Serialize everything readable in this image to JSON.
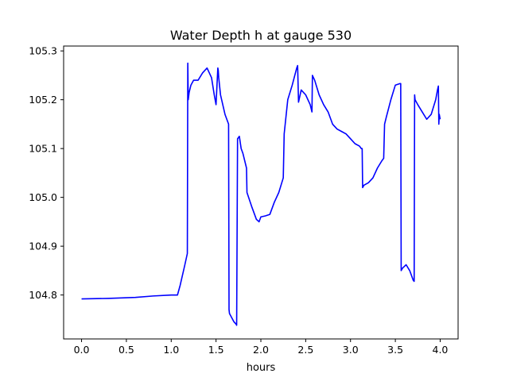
{
  "chart_data": {
    "type": "line",
    "title": "Water Depth h at gauge 530",
    "xlabel": "hours",
    "ylabel": "",
    "xlim": [
      -0.2,
      4.2
    ],
    "ylim": [
      104.71,
      105.31
    ],
    "xticks": [
      0.0,
      0.5,
      1.0,
      1.5,
      2.0,
      2.5,
      3.0,
      3.5,
      4.0
    ],
    "xtick_labels": [
      "0.0",
      "0.5",
      "1.0",
      "1.5",
      "2.0",
      "2.5",
      "3.0",
      "3.5",
      "4.0"
    ],
    "yticks": [
      104.8,
      104.9,
      105.0,
      105.1,
      105.2,
      105.3
    ],
    "ytick_labels": [
      "104.8",
      "104.9",
      "105.0",
      "105.1",
      "105.2",
      "105.3"
    ],
    "grid": false,
    "legend": "none",
    "series": [
      {
        "color": "#0000ff",
        "x": [
          0.0,
          0.3,
          0.6,
          0.8,
          1.0,
          1.07,
          1.1,
          1.15,
          1.18,
          1.185,
          1.19,
          1.2,
          1.22,
          1.25,
          1.3,
          1.35,
          1.4,
          1.45,
          1.48,
          1.5,
          1.52,
          1.525,
          1.53,
          1.55,
          1.6,
          1.64,
          1.645,
          1.65,
          1.7,
          1.725,
          1.73,
          1.74,
          1.76,
          1.78,
          1.8,
          1.84,
          1.845,
          1.9,
          1.95,
          1.98,
          2.0,
          2.05,
          2.1,
          2.15,
          2.2,
          2.25,
          2.26,
          2.3,
          2.35,
          2.4,
          2.41,
          2.42,
          2.45,
          2.5,
          2.55,
          2.57,
          2.575,
          2.6,
          2.65,
          2.7,
          2.75,
          2.8,
          2.85,
          2.9,
          2.95,
          3.0,
          3.05,
          3.1,
          3.12,
          3.13,
          3.135,
          3.15,
          3.2,
          3.25,
          3.3,
          3.35,
          3.37,
          3.38,
          3.4,
          3.45,
          3.5,
          3.55,
          3.56,
          3.565,
          3.58,
          3.62,
          3.66,
          3.7,
          3.71,
          3.715,
          3.72,
          3.75,
          3.8,
          3.85,
          3.9,
          3.95,
          3.97,
          3.98,
          3.985,
          3.99,
          4.0
        ],
        "y": [
          104.792,
          104.793,
          104.795,
          104.798,
          104.8,
          104.8,
          104.82,
          104.86,
          104.885,
          105.275,
          105.2,
          105.215,
          105.23,
          105.24,
          105.24,
          105.255,
          105.265,
          105.245,
          105.21,
          105.19,
          105.265,
          105.26,
          105.245,
          105.21,
          105.17,
          105.15,
          104.77,
          104.762,
          104.745,
          104.74,
          104.738,
          105.12,
          105.125,
          105.1,
          105.09,
          105.06,
          105.01,
          104.98,
          104.955,
          104.95,
          104.96,
          104.962,
          104.965,
          104.99,
          105.01,
          105.04,
          105.13,
          105.2,
          105.23,
          105.265,
          105.27,
          105.195,
          105.22,
          105.21,
          105.19,
          105.175,
          105.25,
          105.24,
          105.21,
          105.19,
          105.175,
          105.15,
          105.14,
          105.135,
          105.13,
          105.12,
          105.11,
          105.105,
          105.1,
          105.1,
          105.02,
          105.025,
          105.03,
          105.04,
          105.06,
          105.075,
          105.08,
          105.15,
          105.165,
          105.2,
          105.23,
          105.233,
          105.233,
          104.85,
          104.855,
          104.862,
          104.85,
          104.83,
          104.828,
          105.21,
          105.2,
          105.19,
          105.175,
          105.16,
          105.17,
          105.2,
          105.22,
          105.228,
          105.15,
          105.17,
          105.16
        ]
      }
    ]
  }
}
